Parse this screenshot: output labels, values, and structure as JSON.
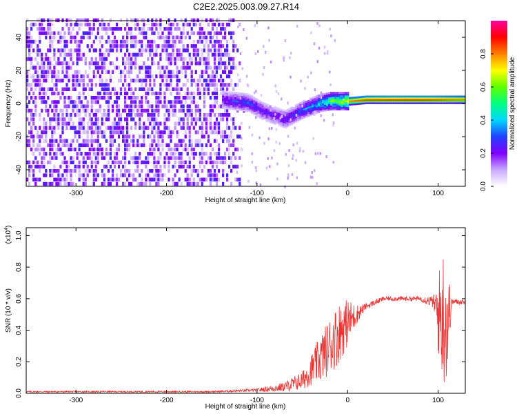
{
  "title": "C2E2.2025.003.09.27.R14",
  "chart_data": [
    {
      "type": "heatmap",
      "xlabel": "Height of straight line (km)",
      "ylabel": "Frequency (Hz)",
      "xlim": [
        -355,
        130
      ],
      "ylim": [
        -50,
        50
      ],
      "xticks": [
        -300,
        -200,
        -100,
        0,
        100
      ],
      "yticks": [
        -40,
        -20,
        0,
        20,
        40
      ],
      "colorbar": {
        "label": "Normalized spectral amplitude",
        "range": [
          0.0,
          1.0
        ],
        "ticks": [
          0.0,
          0.2,
          0.4,
          0.6,
          0.8
        ],
        "colors": [
          "#ffffff",
          "#c8a8ff",
          "#8000ff",
          "#2040ff",
          "#00d8ff",
          "#00ff80",
          "#60ff00",
          "#ffff00",
          "#ff8000",
          "#ff0000",
          "#ff00a0"
        ]
      },
      "ridge_track": {
        "x": [
          -140,
          -125,
          -110,
          -95,
          -80,
          -70,
          -60,
          -50,
          -40,
          -30,
          -20,
          -10,
          0,
          20,
          40,
          60,
          80,
          100,
          130
        ],
        "freq_hz": [
          2,
          1,
          0,
          -5,
          -8,
          -10,
          -7,
          -4,
          -2,
          0,
          1,
          1,
          1,
          2,
          2,
          2,
          2,
          2,
          2
        ],
        "amplitude": [
          0.3,
          0.35,
          0.35,
          0.3,
          0.3,
          0.35,
          0.35,
          0.4,
          0.45,
          0.55,
          0.7,
          0.8,
          0.85,
          0.9,
          0.92,
          0.92,
          0.92,
          0.9,
          0.85
        ]
      },
      "noise_region_x": [
        -355,
        -125
      ]
    },
    {
      "type": "line",
      "xlabel": "Height of straight line (km)",
      "ylabel": "SNR (10 * v/v)",
      "yscale_label": "(x10",
      "yscale_exp": "4",
      "xlim": [
        -355,
        130
      ],
      "ylim": [
        0.0,
        1.05
      ],
      "xticks": [
        -300,
        -200,
        -100,
        0,
        100
      ],
      "yticks": [
        0.0,
        0.2,
        0.4,
        0.6,
        0.8,
        1.0
      ],
      "series": [
        {
          "color": "#ee3333",
          "envelope": {
            "x": [
              -355,
              -150,
              -100,
              -70,
              -50,
              -40,
              -30,
              -20,
              -10,
              0,
              10,
              20,
              40,
              60,
              80,
              95,
              100,
              105,
              110,
              115,
              130
            ],
            "mean": [
              0.01,
              0.01,
              0.02,
              0.04,
              0.08,
              0.15,
              0.22,
              0.3,
              0.38,
              0.45,
              0.5,
              0.55,
              0.6,
              0.6,
              0.6,
              0.58,
              0.5,
              0.5,
              0.45,
              0.58,
              0.58
            ],
            "spread": [
              0.005,
              0.005,
              0.01,
              0.03,
              0.06,
              0.1,
              0.15,
              0.18,
              0.2,
              0.15,
              0.06,
              0.02,
              0.015,
              0.015,
              0.015,
              0.04,
              0.25,
              0.45,
              0.4,
              0.02,
              0.015
            ]
          }
        }
      ]
    }
  ]
}
